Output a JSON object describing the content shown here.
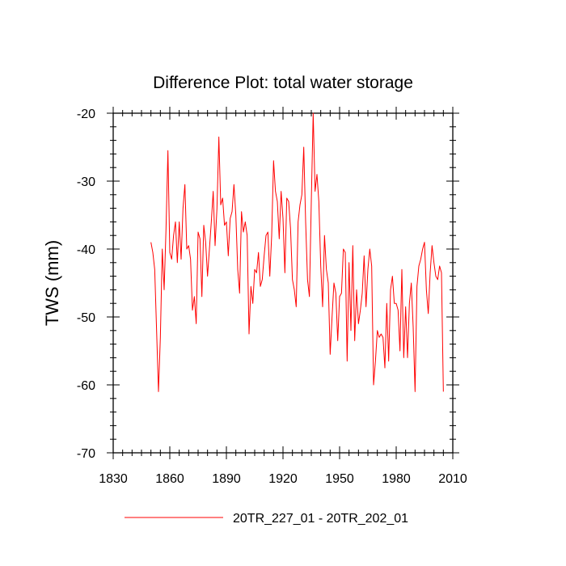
{
  "chart_data": {
    "type": "line",
    "title": "Difference Plot: total water storage",
    "xlabel": "",
    "ylabel": "TWS  (mm)",
    "xlim": [
      1830,
      2010
    ],
    "ylim": [
      -70,
      -20
    ],
    "xticks": [
      1830,
      1860,
      1890,
      1920,
      1950,
      1980,
      2010
    ],
    "yticks": [
      -70,
      -60,
      -50,
      -40,
      -30,
      -20
    ],
    "grid": false,
    "legend_position": "bottom-center",
    "series": [
      {
        "name": "20TR_227_01 - 20TR_202_01",
        "color": "#ff0000",
        "x": [
          1850,
          1851,
          1852,
          1853,
          1854,
          1855,
          1856,
          1857,
          1858,
          1859,
          1860,
          1861,
          1862,
          1863,
          1864,
          1865,
          1866,
          1867,
          1868,
          1869,
          1870,
          1871,
          1872,
          1873,
          1874,
          1875,
          1876,
          1877,
          1878,
          1879,
          1880,
          1881,
          1882,
          1883,
          1884,
          1885,
          1886,
          1887,
          1888,
          1889,
          1890,
          1891,
          1892,
          1893,
          1894,
          1895,
          1896,
          1897,
          1898,
          1899,
          1900,
          1901,
          1902,
          1903,
          1904,
          1905,
          1906,
          1907,
          1908,
          1909,
          1910,
          1911,
          1912,
          1913,
          1914,
          1915,
          1916,
          1917,
          1918,
          1919,
          1920,
          1921,
          1922,
          1923,
          1924,
          1925,
          1926,
          1927,
          1928,
          1929,
          1930,
          1931,
          1932,
          1933,
          1934,
          1935,
          1936,
          1937,
          1938,
          1939,
          1940,
          1941,
          1942,
          1943,
          1944,
          1945,
          1946,
          1947,
          1948,
          1949,
          1950,
          1951,
          1952,
          1953,
          1954,
          1955,
          1956,
          1957,
          1958,
          1959,
          1960,
          1961,
          1962,
          1963,
          1964,
          1965,
          1966,
          1967,
          1968,
          1969,
          1970,
          1971,
          1972,
          1973,
          1974,
          1975,
          1976,
          1977,
          1978,
          1979,
          1980,
          1981,
          1982,
          1983,
          1984,
          1985,
          1986,
          1987,
          1988,
          1989,
          1990,
          1991,
          1992,
          1993,
          1994,
          1995,
          1996,
          1997,
          1998,
          1999,
          2000,
          2001,
          2002,
          2003,
          2004,
          2005
        ],
        "values": [
          -39,
          -40.5,
          -43,
          -52,
          -61,
          -53,
          -40,
          -46,
          -37,
          -25.5,
          -40.5,
          -41.5,
          -38,
          -36,
          -42,
          -36,
          -41.5,
          -34,
          -30.5,
          -40,
          -39.5,
          -41.5,
          -49,
          -47,
          -51,
          -37.5,
          -38.5,
          -47,
          -36.5,
          -39,
          -44,
          -40,
          -36,
          -31.5,
          -39.5,
          -34,
          -23.5,
          -33.5,
          -32.5,
          -36.5,
          -36,
          -41,
          -35.5,
          -34.5,
          -30.5,
          -35,
          -43,
          -46.5,
          -34.5,
          -37.5,
          -36,
          -38,
          -52.5,
          -45.5,
          -48,
          -43,
          -43.5,
          -40.5,
          -45.5,
          -44.5,
          -41,
          -38,
          -37.5,
          -44,
          -38,
          -27,
          -31.5,
          -33,
          -38.5,
          -31.5,
          -35.5,
          -43.5,
          -32.5,
          -33,
          -37,
          -44.5,
          -46,
          -48.5,
          -36,
          -33.5,
          -32,
          -25,
          -36,
          -44.5,
          -47,
          -33,
          -20,
          -31.5,
          -29,
          -33,
          -42.5,
          -48.5,
          -38,
          -43,
          -45,
          -55.5,
          -50,
          -45,
          -46.5,
          -53.5,
          -47,
          -46.5,
          -40,
          -40.5,
          -56.5,
          -42,
          -52,
          -39.5,
          -53.5,
          -46,
          -51,
          -49,
          -46.5,
          -41,
          -48.5,
          -43,
          -40,
          -42.5,
          -60,
          -56.5,
          -52,
          -53,
          -52.5,
          -53,
          -57.5,
          -48,
          -56.5,
          -46,
          -44,
          -48,
          -48,
          -49,
          -55,
          -43,
          -56,
          -48.5,
          -56,
          -48,
          -45,
          -51.5,
          -61,
          -45.5,
          -42.5,
          -41.5,
          -40,
          -39,
          -46,
          -49.5,
          -43.5,
          -39.5,
          -42,
          -44,
          -44.5,
          -42.5,
          -43.5,
          -61
        ]
      }
    ]
  }
}
